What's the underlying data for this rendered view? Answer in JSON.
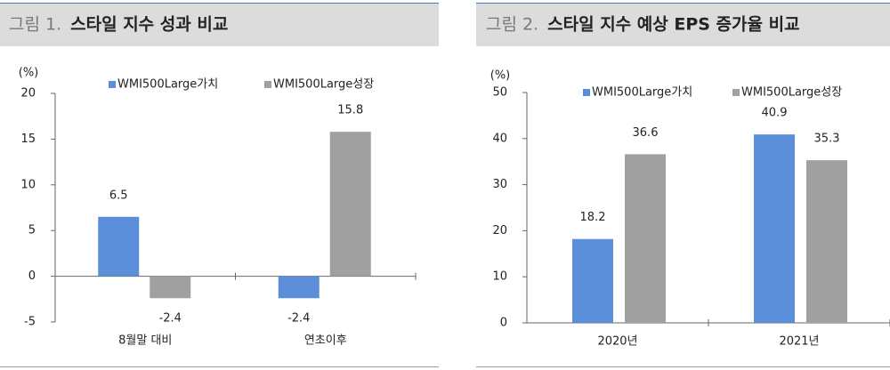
{
  "chart_data": [
    {
      "type": "bar",
      "label": "그림 1.",
      "title": "스타일 지수 성과 비교",
      "ylabel": "(%)",
      "categories": [
        "8월말 대비",
        "연초이후"
      ],
      "series": [
        {
          "name": "WMI500Large가치",
          "color": "#5b8ed8",
          "values": [
            6.5,
            -2.4
          ]
        },
        {
          "name": "WMI500Large성장",
          "color": "#a0a0a0",
          "values": [
            -2.4,
            15.8
          ]
        }
      ],
      "ylim": [
        -5,
        20
      ],
      "yticks": [
        -5,
        0,
        5,
        10,
        15,
        20
      ]
    },
    {
      "type": "bar",
      "label": "그림 2.",
      "title": "스타일 지수 예상 EPS 증가율 비교",
      "ylabel": "(%)",
      "categories": [
        "2020년",
        "2021년"
      ],
      "series": [
        {
          "name": "WMI500Large가치",
          "color": "#5b8ed8",
          "values": [
            18.2,
            40.9
          ]
        },
        {
          "name": "WMI500Large성장",
          "color": "#a0a0a0",
          "values": [
            36.6,
            35.3
          ]
        }
      ],
      "ylim": [
        0,
        50
      ],
      "yticks": [
        0,
        10,
        20,
        30,
        40,
        50
      ]
    }
  ]
}
